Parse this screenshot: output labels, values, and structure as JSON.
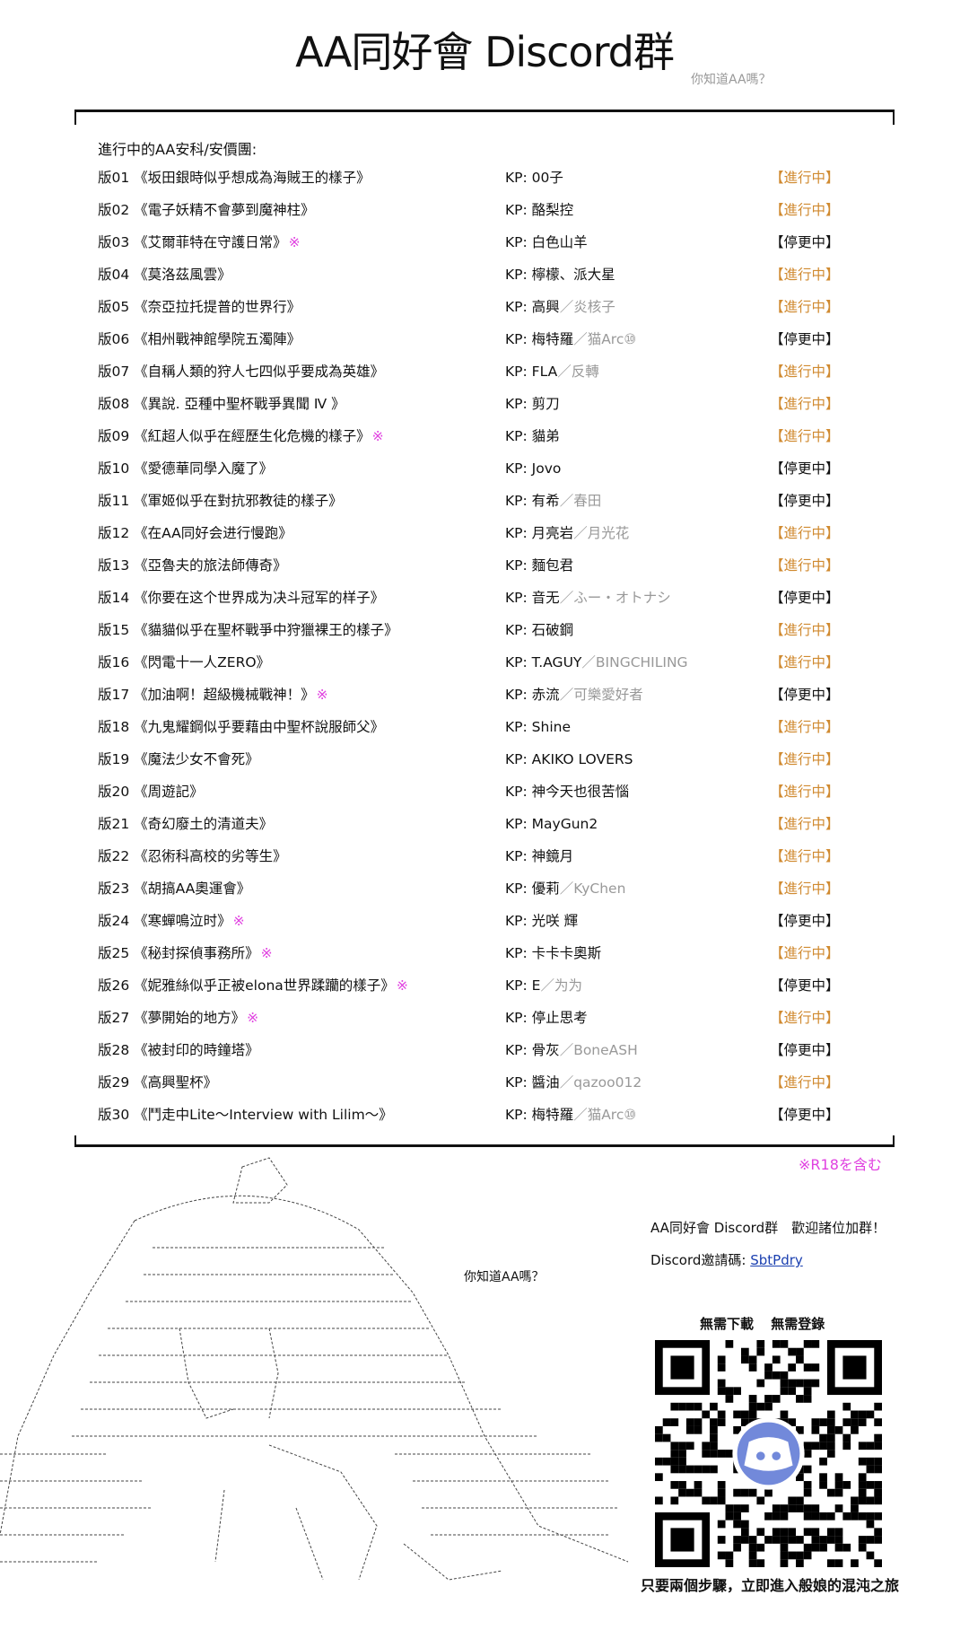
{
  "header": {
    "title": "AA同好會 Discord群",
    "subtitle": "你知道AA嗎？"
  },
  "list": {
    "heading": "進行中的AA安科/安價團:",
    "kp_prefix": "KP: ",
    "r18_mark": "※",
    "rows": [
      {
        "title": "版01 《坂田銀時似乎想成為海賊王的樣子》",
        "r18": false,
        "kp": "00子",
        "kp_alt": "",
        "status": "【進行中】",
        "running": true
      },
      {
        "title": "版02 《電子妖精不會夢到魔神柱》",
        "r18": false,
        "kp": "酪梨控",
        "kp_alt": "",
        "status": "【進行中】",
        "running": true
      },
      {
        "title": "版03 《艾爾菲特在守護日常》",
        "r18": true,
        "kp": "白色山羊",
        "kp_alt": "",
        "status": "【停更中】",
        "running": false
      },
      {
        "title": "版04 《莫洛茲風雲》",
        "r18": false,
        "kp": "檸檬、派大星",
        "kp_alt": "",
        "status": "【進行中】",
        "running": true
      },
      {
        "title": "版05 《奈亞拉托提普的世界行》",
        "r18": false,
        "kp": "高興",
        "kp_alt": "／炎核子",
        "status": "【進行中】",
        "running": true
      },
      {
        "title": "版06 《相州戰神館學院五濁陣》",
        "r18": false,
        "kp": "梅特羅",
        "kp_alt": "／猫Arc⑩",
        "status": "【停更中】",
        "running": false
      },
      {
        "title": "版07 《自稱人類的狩人七四似乎要成為英雄》",
        "r18": false,
        "kp": "FLA",
        "kp_alt": "／反轉",
        "status": "【進行中】",
        "running": true
      },
      {
        "title": "版08 《異說. 亞種中聖杯戰爭異聞 Ⅳ 》",
        "r18": false,
        "kp": "剪刀",
        "kp_alt": "",
        "status": "【進行中】",
        "running": true
      },
      {
        "title": "版09 《紅超人似乎在經歷生化危機的樣子》",
        "r18": true,
        "kp": "貓弟",
        "kp_alt": "",
        "status": "【進行中】",
        "running": true
      },
      {
        "title": "版10 《愛德華同學入魔了》",
        "r18": false,
        "kp": "Jovo",
        "kp_alt": "",
        "status": "【停更中】",
        "running": false
      },
      {
        "title": "版11 《軍姬似乎在對抗邪教徒的樣子》",
        "r18": false,
        "kp": "有希",
        "kp_alt": "／春田",
        "status": "【停更中】",
        "running": false
      },
      {
        "title": "版12 《在AA同好会进行慢跑》",
        "r18": false,
        "kp": "月亮岩",
        "kp_alt": "／月光花",
        "status": "【進行中】",
        "running": true
      },
      {
        "title": "版13 《亞魯夫的旅法師傳奇》",
        "r18": false,
        "kp": "麵包君",
        "kp_alt": "",
        "status": "【進行中】",
        "running": true
      },
      {
        "title": "版14 《你要在这个世界成为决斗冠军的样子》",
        "r18": false,
        "kp": "音无",
        "kp_alt": "／ふー・オトナシ",
        "status": "【停更中】",
        "running": false
      },
      {
        "title": "版15 《貓貓似乎在聖杯戰爭中狩獵裸王的樣子》",
        "r18": false,
        "kp": "石破鋼",
        "kp_alt": "",
        "status": "【進行中】",
        "running": true
      },
      {
        "title": "版16 《閃電十一人ZERO》",
        "r18": false,
        "kp": "T.AGUY",
        "kp_alt": "／BINGCHILING",
        "status": "【進行中】",
        "running": true
      },
      {
        "title": "版17 《加油啊！超級機械戰神！》",
        "r18": true,
        "kp": "赤流",
        "kp_alt": "／可樂愛好者",
        "status": "【停更中】",
        "running": false
      },
      {
        "title": "版18 《九鬼耀鋼似乎要藉由中聖杯說服師父》",
        "r18": false,
        "kp": "Shine",
        "kp_alt": "",
        "status": "【進行中】",
        "running": true
      },
      {
        "title": "版19 《魔法少女不會死》",
        "r18": false,
        "kp": "AKIKO LOVERS",
        "kp_alt": "",
        "status": "【進行中】",
        "running": true
      },
      {
        "title": "版20 《周遊記》",
        "r18": false,
        "kp": "神今天也很苦惱",
        "kp_alt": "",
        "status": "【進行中】",
        "running": true
      },
      {
        "title": "版21 《奇幻廢土的清道夫》",
        "r18": false,
        "kp": "MayGun2",
        "kp_alt": "",
        "status": "【進行中】",
        "running": true
      },
      {
        "title": "版22 《忍術科高校的劣等生》",
        "r18": false,
        "kp": "神鏡月",
        "kp_alt": "",
        "status": "【進行中】",
        "running": true
      },
      {
        "title": "版23 《胡搞AA奧運會》",
        "r18": false,
        "kp": "優莉",
        "kp_alt": "／KyChen",
        "status": "【進行中】",
        "running": true
      },
      {
        "title": "版24 《寒蟬鳴泣时》",
        "r18": true,
        "kp": "光咲 輝",
        "kp_alt": "",
        "status": "【停更中】",
        "running": false
      },
      {
        "title": "版25 《秘封探偵事務所》",
        "r18": true,
        "kp": "卡卡卡奧斯",
        "kp_alt": "",
        "status": "【進行中】",
        "running": true
      },
      {
        "title": "版26 《妮雅絲似乎正被elona世界蹂躪的樣子》",
        "r18": true,
        "kp": "E",
        "kp_alt": "／为为",
        "status": "【停更中】",
        "running": false
      },
      {
        "title": "版27 《夢開始的地方》",
        "r18": true,
        "kp": "停止思考",
        "kp_alt": "",
        "status": "【進行中】",
        "running": true
      },
      {
        "title": "版28 《被封印的時鐘塔》",
        "r18": false,
        "kp": "骨灰",
        "kp_alt": "／BoneASH",
        "status": "【停更中】",
        "running": false
      },
      {
        "title": "版29 《高興聖杯》",
        "r18": false,
        "kp": "醬油",
        "kp_alt": "／qazoo012",
        "status": "【進行中】",
        "running": true
      },
      {
        "title": "版30 《鬥走中Lite～Interview with Lilim～》",
        "r18": false,
        "kp": "梅特羅",
        "kp_alt": "／猫Arc⑩",
        "status": "【停更中】",
        "running": false
      }
    ]
  },
  "r18_note": "※R18を含む",
  "art": {
    "caption": "你知道AA嗎？"
  },
  "discord": {
    "welcome": "AA同好會 Discord群　歡迎諸位加群！",
    "invite_label": "Discord邀請碼: ",
    "invite_code": "SbtPdry",
    "no_download": "無需下載",
    "no_login": "無需登錄",
    "caption": "只要兩個步驟，立即進入般娘的混沌之旅",
    "logo_color": "#7289da"
  },
  "colors": {
    "running": "#d08a30",
    "r18": "#e040e0",
    "alt": "#999999"
  }
}
